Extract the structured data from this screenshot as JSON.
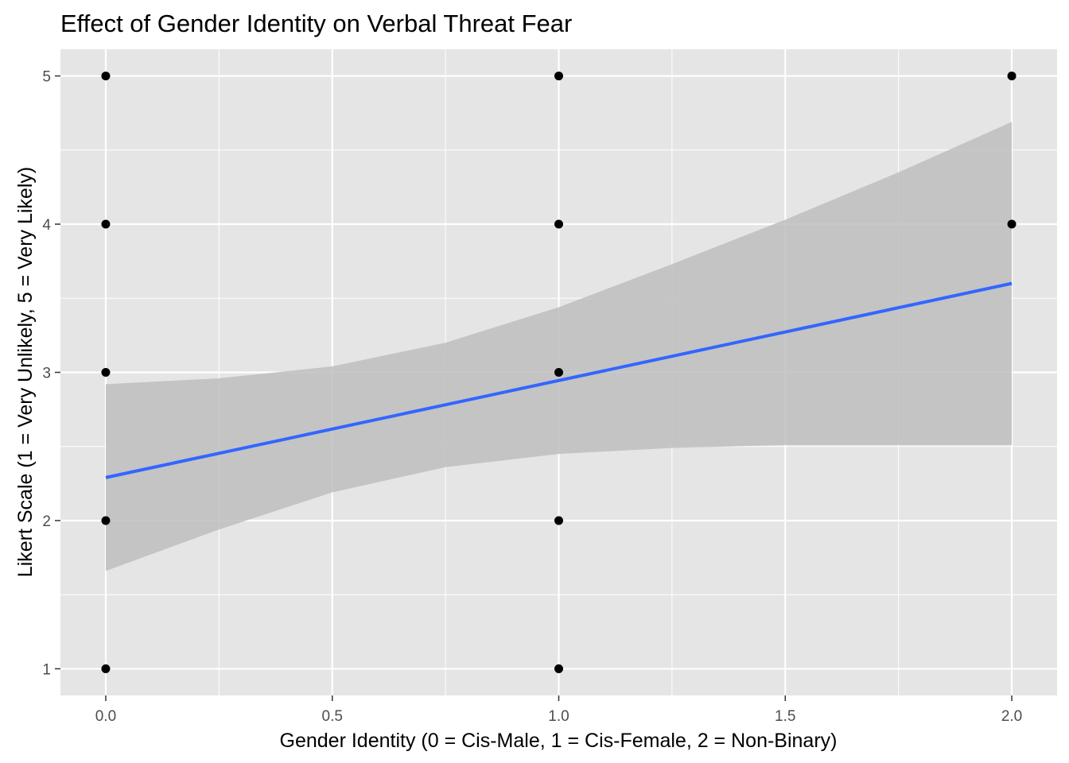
{
  "chart_data": {
    "type": "scatter",
    "title": "Effect of Gender Identity on Verbal Threat Fear",
    "xlabel": "Gender Identity (0 = Cis-Male, 1 = Cis-Female, 2 = Non-Binary)",
    "ylabel": "Likert Scale (1 = Very Unlikely, 5 = Very Likely)",
    "xlim": [
      -0.1,
      2.1
    ],
    "ylim": [
      0.82,
      5.18
    ],
    "x_ticks": [
      0.0,
      0.5,
      1.0,
      1.5,
      2.0
    ],
    "x_tick_labels": [
      "0.0",
      "0.5",
      "1.0",
      "1.5",
      "2.0"
    ],
    "y_ticks": [
      1,
      2,
      3,
      4,
      5
    ],
    "y_tick_labels": [
      "1",
      "2",
      "3",
      "4",
      "5"
    ],
    "grid": true,
    "points": [
      {
        "x": 0,
        "y": 1
      },
      {
        "x": 0,
        "y": 2
      },
      {
        "x": 0,
        "y": 3
      },
      {
        "x": 0,
        "y": 4
      },
      {
        "x": 0,
        "y": 5
      },
      {
        "x": 1,
        "y": 1
      },
      {
        "x": 1,
        "y": 2
      },
      {
        "x": 1,
        "y": 3
      },
      {
        "x": 1,
        "y": 4
      },
      {
        "x": 1,
        "y": 5
      },
      {
        "x": 2,
        "y": 4
      },
      {
        "x": 2,
        "y": 5
      }
    ],
    "fit_line": {
      "x": [
        0,
        2
      ],
      "y": [
        2.29,
        3.6
      ]
    },
    "confidence_band": {
      "x": [
        0,
        0.25,
        0.5,
        0.75,
        1.0,
        1.25,
        1.5,
        1.75,
        2.0
      ],
      "lower": [
        1.66,
        1.94,
        2.19,
        2.36,
        2.45,
        2.49,
        2.51,
        2.51,
        2.51
      ],
      "upper": [
        2.92,
        2.96,
        3.04,
        3.2,
        3.44,
        3.73,
        4.03,
        4.35,
        4.69
      ]
    },
    "colors": {
      "panel": "#e5e5e5",
      "grid": "#ffffff",
      "points": "#000000",
      "line": "#3366ff",
      "band": "#bebebe"
    }
  }
}
